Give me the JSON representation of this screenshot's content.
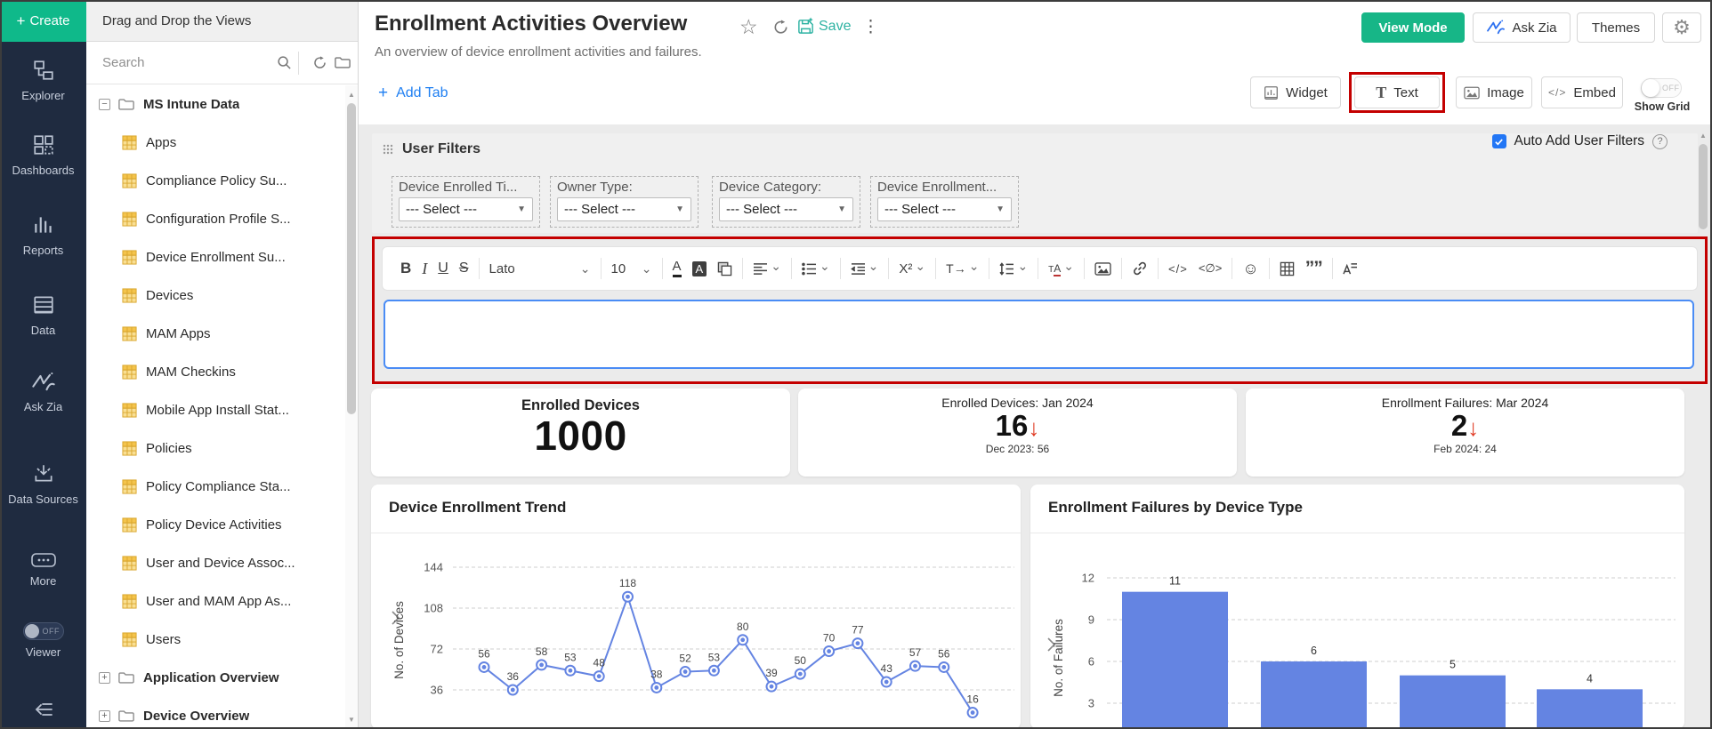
{
  "window": {
    "tab_title": "Drag and Drop the Views"
  },
  "sidebar": {
    "create_label": "Create",
    "items": [
      {
        "icon": "explorer-icon",
        "label": "Explorer"
      },
      {
        "icon": "dashboards-icon",
        "label": "Dashboards"
      },
      {
        "icon": "reports-icon",
        "label": "Reports"
      },
      {
        "icon": "data-icon",
        "label": "Data"
      },
      {
        "icon": "ask-zia-icon",
        "label": "Ask Zia"
      },
      {
        "icon": "data-sources-icon",
        "label": "Data Sources"
      },
      {
        "icon": "more-icon",
        "label": "More"
      }
    ],
    "viewer": {
      "label": "Viewer",
      "state": "OFF"
    }
  },
  "tree": {
    "search_placeholder": "Search",
    "rows": [
      {
        "type": "folder",
        "expander": "-",
        "label": "MS Intune Data"
      },
      {
        "type": "table",
        "label": "Apps"
      },
      {
        "type": "table",
        "label": "Compliance Policy Su..."
      },
      {
        "type": "table",
        "label": "Configuration Profile S..."
      },
      {
        "type": "table",
        "label": "Device Enrollment Su..."
      },
      {
        "type": "table",
        "label": "Devices"
      },
      {
        "type": "table",
        "label": "MAM Apps"
      },
      {
        "type": "table",
        "label": "MAM Checkins"
      },
      {
        "type": "table",
        "label": "Mobile App Install Stat..."
      },
      {
        "type": "table",
        "label": "Policies"
      },
      {
        "type": "table",
        "label": "Policy Compliance Sta..."
      },
      {
        "type": "table",
        "label": "Policy Device Activities"
      },
      {
        "type": "table",
        "label": "User and Device Assoc..."
      },
      {
        "type": "table",
        "label": "User and MAM App As..."
      },
      {
        "type": "table",
        "label": "Users"
      },
      {
        "type": "folder",
        "expander": "+",
        "label": "Application Overview"
      },
      {
        "type": "folder",
        "expander": "+",
        "label": "Device Overview"
      }
    ]
  },
  "header": {
    "title": "Enrollment Activities Overview",
    "subtitle": "An overview of device enrollment activities and failures.",
    "save_label": "Save",
    "view_mode_label": "View Mode",
    "ask_zia_label": "Ask Zia",
    "themes_label": "Themes"
  },
  "tabbar": {
    "add_tab_label": "Add Tab",
    "widget_label": "Widget",
    "text_label": "Text",
    "image_label": "Image",
    "embed_label": "Embed",
    "show_grid_label": "Show Grid",
    "grid_toggle_state": "OFF"
  },
  "filters": {
    "title": "User Filters",
    "auto_add_label": "Auto Add User Filters",
    "items": [
      {
        "label": "Device Enrolled Ti...",
        "value": "--- Select ---"
      },
      {
        "label": "Owner Type:",
        "value": "--- Select ---"
      },
      {
        "label": "Device Category:",
        "value": "--- Select ---"
      },
      {
        "label": "Device Enrollment...",
        "value": "--- Select ---"
      }
    ]
  },
  "editor": {
    "font_name": "Lato",
    "font_size": "10",
    "toolbar_icons": [
      "bold",
      "italic",
      "underline",
      "strikethrough",
      "|",
      "font-family",
      "|",
      "font-size",
      "|",
      "text-color",
      "highlight-color",
      "format-painter",
      "|",
      "align",
      "|",
      "list",
      "|",
      "indent",
      "|",
      "superscript",
      "|",
      "text-direction",
      "|",
      "line-spacing",
      "|",
      "font-case",
      "|",
      "insert-image",
      "|",
      "insert-link",
      "|",
      "code-view",
      "inline-code",
      "|",
      "emoji",
      "|",
      "insert-table",
      "blockquote",
      "|",
      "clear-format"
    ]
  },
  "kpis": [
    {
      "title": "Enrolled Devices",
      "value": "1000",
      "trend": "",
      "footnote": ""
    },
    {
      "title": "Enrolled Devices: Jan 2024",
      "value": "16",
      "trend": "down",
      "footnote": "Dec 2023: 56"
    },
    {
      "title": "Enrollment Failures: Mar 2024",
      "value": "2",
      "trend": "down",
      "footnote": "Feb 2024: 24"
    }
  ],
  "chart_data": [
    {
      "type": "line",
      "title": "Device Enrollment Trend",
      "ylabel": "No. of Devices",
      "yticks": [
        144,
        108,
        72,
        36
      ],
      "values": [
        56,
        36,
        58,
        53,
        48,
        118,
        38,
        52,
        53,
        80,
        39,
        50,
        70,
        77,
        43,
        57,
        56,
        16
      ],
      "line_color": "#6484e2",
      "grid": true,
      "legend_position": "none"
    },
    {
      "type": "bar",
      "title": "Enrollment Failures by Device Type",
      "ylabel": "No. of Failures",
      "yticks": [
        12,
        9,
        6,
        3
      ],
      "values": [
        11,
        6,
        5,
        4
      ],
      "bar_color": "#6484e2",
      "grid": true,
      "legend_position": "none"
    }
  ],
  "colors": {
    "accent_green": "#17b687",
    "accent_teal": "#2fb3a3",
    "accent_blue": "#1f7ff2",
    "checkbox_blue": "#2276f5",
    "highlight_red": "#c40000",
    "chart_blue": "#6484e2",
    "rail_bg": "#1f2b40",
    "canvas_bg": "#ebebeb",
    "trend_down_red": "#e03b24"
  }
}
